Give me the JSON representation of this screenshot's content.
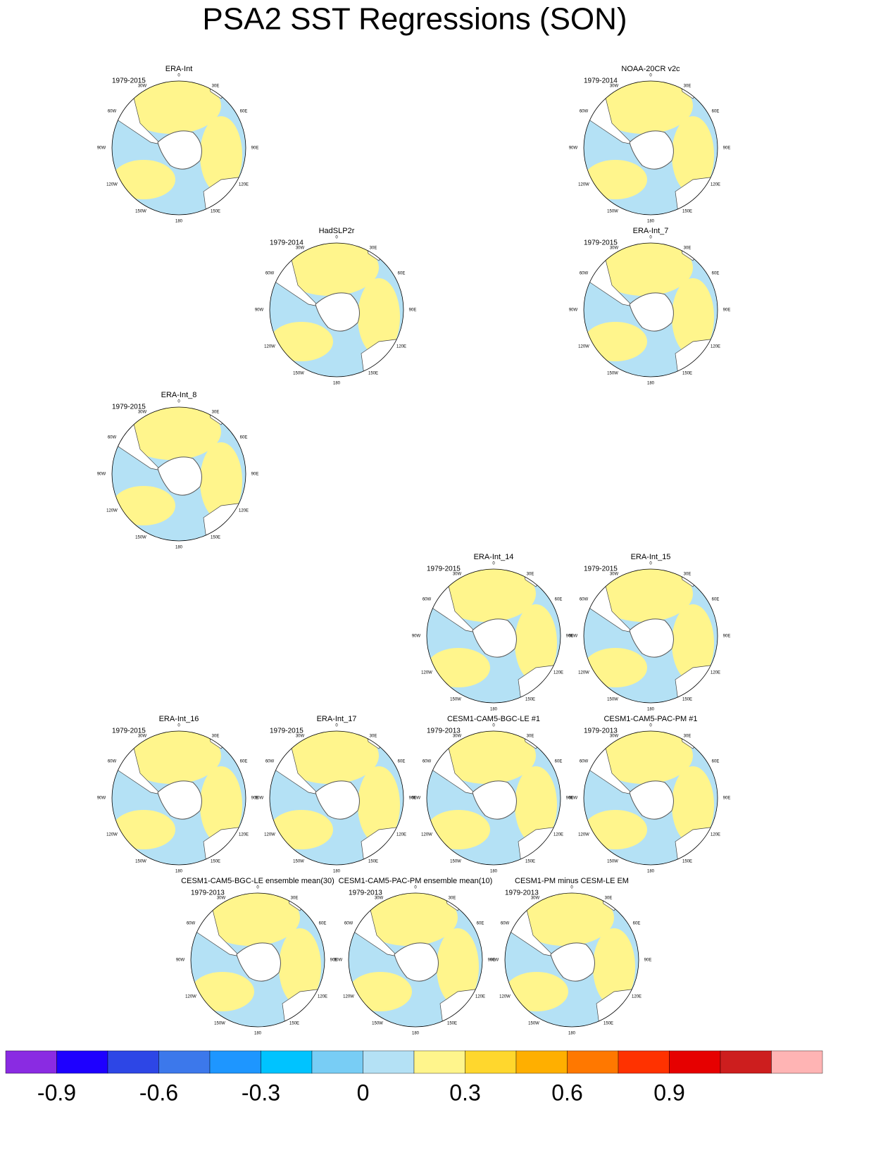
{
  "title": "PSA2 SST Regressions (SON)",
  "longitude_labels": [
    "0",
    "30E",
    "60E",
    "90E",
    "120E",
    "150E",
    "180",
    "150W",
    "120W",
    "90W",
    "60W",
    "30W"
  ],
  "panels": [
    {
      "title": "ERA-Int",
      "period": "1979-2015"
    },
    {
      "title": "NOAA-20CR v2c",
      "period": "1979-2014"
    },
    {
      "title": "HadSLP2r",
      "period": "1979-2014"
    },
    {
      "title": "ERA-Int_7",
      "period": "1979-2015"
    },
    {
      "title": "ERA-Int_8",
      "period": "1979-2015"
    },
    {
      "title": "ERA-Int_14",
      "period": "1979-2015"
    },
    {
      "title": "ERA-Int_15",
      "period": "1979-2015"
    },
    {
      "title": "ERA-Int_16",
      "period": "1979-2015"
    },
    {
      "title": "ERA-Int_17",
      "period": "1979-2015"
    },
    {
      "title": "CESM1-CAM5-BGC-LE #1",
      "period": "1979-2013"
    },
    {
      "title": "CESM1-CAM5-PAC-PM #1",
      "period": "1979-2013"
    },
    {
      "title": "CESM1-CAM5-BGC-LE ensemble mean(30)",
      "period": "1979-2013"
    },
    {
      "title": "CESM1-CAM5-PAC-PM ensemble mean(10)",
      "period": "1979-2013"
    },
    {
      "title": "CESM1-PM minus CESM-LE EM",
      "period": "1979-2013"
    }
  ],
  "colorbar": {
    "colors": [
      "#8a2be2",
      "#1e00ff",
      "#2d46e6",
      "#3c78eb",
      "#1e96ff",
      "#00c3ff",
      "#78cdf5",
      "#b4e1f5",
      "#fff58c",
      "#ffd72d",
      "#ffaf00",
      "#ff7800",
      "#ff3200",
      "#e60000",
      "#cd1e1e",
      "#ffb4b4"
    ],
    "ticks": [
      -0.9,
      -0.6,
      -0.3,
      0,
      0.3,
      0.6,
      0.9
    ]
  }
}
